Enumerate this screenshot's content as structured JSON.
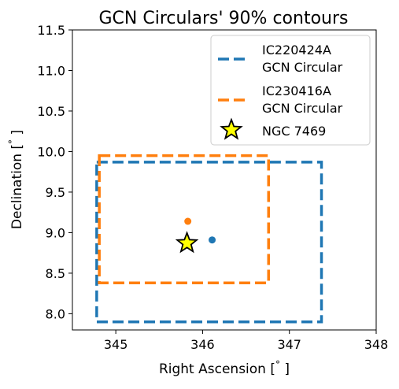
{
  "chart_data": {
    "type": "scatter",
    "title": "GCN Circulars' 90% contours",
    "xlabel": "Right Ascension [$^\\circ$]",
    "xlabel_text": "Right Ascension [",
    "xlabel_unit": "°",
    "xlabel_close": " ]",
    "ylabel_text": "Declination [",
    "ylabel_unit": "°",
    "ylabel_close": " ]",
    "xlim": [
      344.5,
      348
    ],
    "ylim": [
      7.8,
      11.5
    ],
    "x_ticks": [
      345,
      346,
      347,
      348
    ],
    "x_tick_labels": [
      "345",
      "346",
      "347",
      "348"
    ],
    "y_ticks": [
      8.0,
      8.5,
      9.0,
      9.5,
      10.0,
      10.5,
      11.0,
      11.5
    ],
    "y_tick_labels": [
      "8.0",
      "8.5",
      "9.0",
      "9.5",
      "10.0",
      "10.5",
      "11.0",
      "11.5"
    ],
    "grid": false,
    "legend_position": "top-right",
    "series": [
      {
        "name_line1": "IC220424A",
        "name_line2": "GCN Circular",
        "color": "#1f77b4",
        "contour": {
          "ra_min": 344.78,
          "ra_max": 347.37,
          "dec_min": 7.9,
          "dec_max": 9.87
        },
        "best_fit": {
          "ra": 346.11,
          "dec": 8.91
        }
      },
      {
        "name_line1": "IC230416A",
        "name_line2": "GCN Circular",
        "color": "#ff7f0e",
        "contour": {
          "ra_min": 344.81,
          "ra_max": 346.76,
          "dec_min": 8.38,
          "dec_max": 9.95
        },
        "best_fit": {
          "ra": 345.83,
          "dec": 9.14
        }
      }
    ],
    "source": {
      "name": "NGC 7469",
      "ra": 345.82,
      "dec": 8.87,
      "color": "#ffff00",
      "edge_color": "#000000"
    }
  }
}
